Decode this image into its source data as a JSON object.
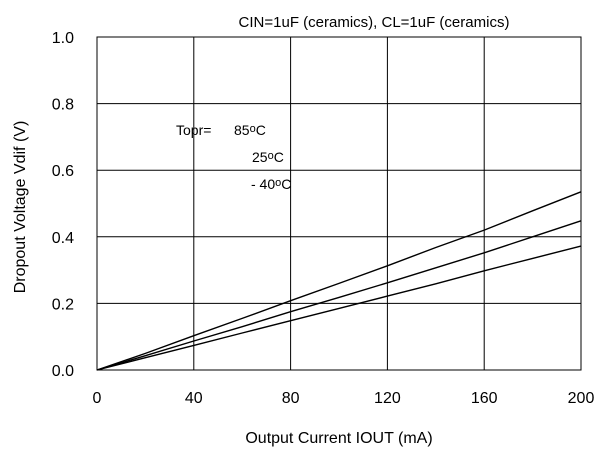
{
  "chart_data": {
    "type": "line",
    "title": "CIN=1uF (ceramics), CL=1uF (ceramics)",
    "xlabel": "Output Current IOUT (mA)",
    "ylabel": "Dropout Voltage Vdif (V)",
    "xlim": [
      0,
      200
    ],
    "ylim": [
      0,
      1.0
    ],
    "grid": true,
    "x_ticks": [
      "0",
      "40",
      "80",
      "120",
      "160",
      "200"
    ],
    "y_ticks": [
      "0.0",
      "0.2",
      "0.4",
      "0.6",
      "0.8",
      "1.0"
    ],
    "legend": {
      "title": "Topr=",
      "placement": "upper-left",
      "entries": [
        {
          "value": "85",
          "sup": "o",
          "unit": "C"
        },
        {
          "value": "25",
          "sup": "o",
          "unit": "C"
        },
        {
          "value": "- 40",
          "sup": "o",
          "unit": "C"
        }
      ]
    },
    "x": [
      0,
      20,
      40,
      60,
      80,
      100,
      120,
      140,
      160,
      180,
      200
    ],
    "series": [
      {
        "name": "85°C",
        "values": [
          0,
          0.05,
          0.103,
          0.155,
          0.208,
          0.26,
          0.313,
          0.368,
          0.42,
          0.478,
          0.535
        ]
      },
      {
        "name": "25°C",
        "values": [
          0,
          0.043,
          0.087,
          0.13,
          0.175,
          0.218,
          0.262,
          0.307,
          0.352,
          0.4,
          0.448
        ]
      },
      {
        "name": "-40°C",
        "values": [
          0,
          0.037,
          0.074,
          0.111,
          0.148,
          0.185,
          0.222,
          0.259,
          0.298,
          0.335,
          0.372
        ]
      }
    ]
  }
}
